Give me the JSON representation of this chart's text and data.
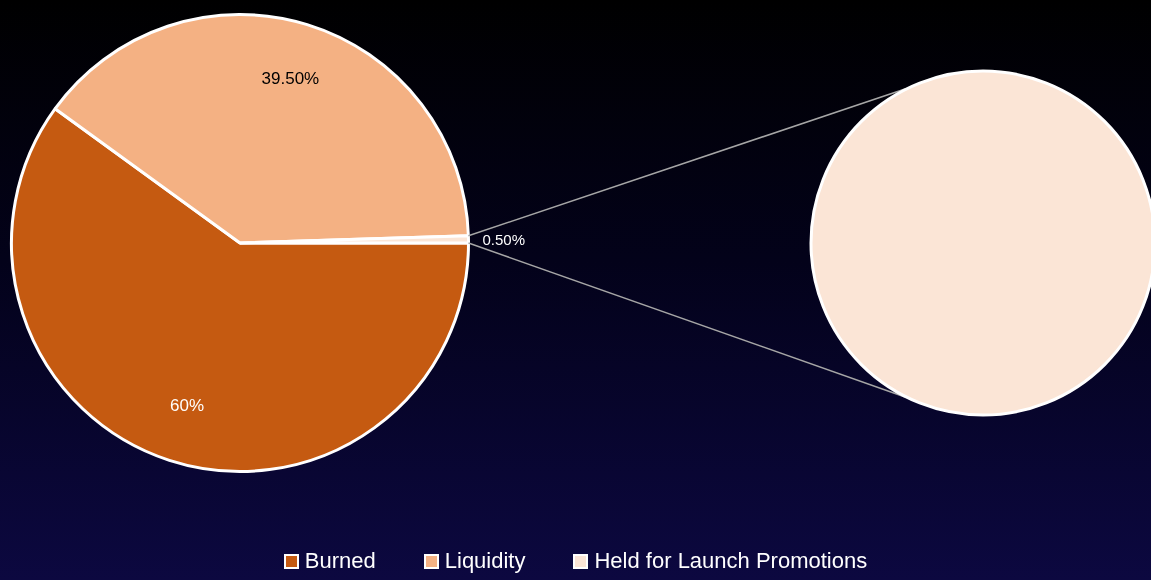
{
  "chart_data": {
    "type": "pie",
    "categories": [
      "Burned",
      "Liquidity",
      "Held for Launch Promotions"
    ],
    "values": [
      60,
      39.5,
      0.5
    ],
    "colors": [
      "#c55a11",
      "#f4b183",
      "#fbe5d6"
    ],
    "value_labels": [
      "60%",
      "39.50%",
      "0.50%"
    ],
    "legend": "bottom"
  }
}
